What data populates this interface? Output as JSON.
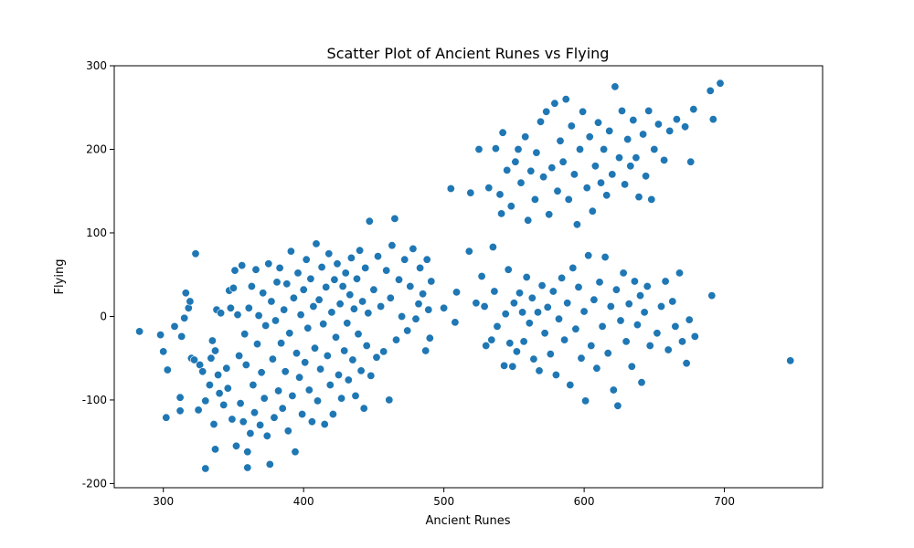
{
  "chart_data": {
    "type": "scatter",
    "title": "Scatter Plot of Ancient Runes vs Flying",
    "xlabel": "Ancient Runes",
    "ylabel": "Flying",
    "xlim": [
      265,
      770
    ],
    "ylim": [
      -205,
      300
    ],
    "x_ticks": [
      300,
      400,
      500,
      600,
      700
    ],
    "y_ticks": [
      -200,
      -100,
      0,
      100,
      200,
      300
    ],
    "grid": false,
    "marker_color": "#1f77b4",
    "series": [
      {
        "values": [
          [
            283,
            -18
          ],
          [
            298,
            -22
          ],
          [
            300,
            -42
          ],
          [
            302,
            -121
          ],
          [
            303,
            -64
          ],
          [
            308,
            -12
          ],
          [
            312,
            -97
          ],
          [
            312,
            -113
          ],
          [
            313,
            -24
          ],
          [
            315,
            -2
          ],
          [
            316,
            28
          ],
          [
            318,
            10
          ],
          [
            319,
            18
          ],
          [
            320,
            -50
          ],
          [
            322,
            -52
          ],
          [
            323,
            75
          ],
          [
            325,
            -112
          ],
          [
            326,
            -58
          ],
          [
            328,
            -66
          ],
          [
            330,
            -101
          ],
          [
            330,
            -182
          ],
          [
            333,
            -82
          ],
          [
            334,
            -50
          ],
          [
            335,
            -29
          ],
          [
            336,
            -129
          ],
          [
            337,
            -41
          ],
          [
            337,
            -159
          ],
          [
            338,
            8
          ],
          [
            339,
            -70
          ],
          [
            340,
            -92
          ],
          [
            341,
            4
          ],
          [
            343,
            -106
          ],
          [
            345,
            -62
          ],
          [
            346,
            -86
          ],
          [
            347,
            31
          ],
          [
            348,
            10
          ],
          [
            349,
            -123
          ],
          [
            350,
            34
          ],
          [
            351,
            55
          ],
          [
            352,
            -155
          ],
          [
            353,
            2
          ],
          [
            354,
            -47
          ],
          [
            355,
            -104
          ],
          [
            356,
            61
          ],
          [
            357,
            -126
          ],
          [
            358,
            -21
          ],
          [
            359,
            -58
          ],
          [
            360,
            -162
          ],
          [
            360,
            -181
          ],
          [
            361,
            10
          ],
          [
            362,
            -140
          ],
          [
            363,
            36
          ],
          [
            364,
            -82
          ],
          [
            365,
            -115
          ],
          [
            366,
            56
          ],
          [
            367,
            -33
          ],
          [
            368,
            1
          ],
          [
            369,
            -130
          ],
          [
            370,
            -67
          ],
          [
            371,
            28
          ],
          [
            372,
            -98
          ],
          [
            373,
            -11
          ],
          [
            374,
            -143
          ],
          [
            375,
            63
          ],
          [
            376,
            -177
          ],
          [
            377,
            18
          ],
          [
            378,
            -51
          ],
          [
            379,
            -121
          ],
          [
            380,
            -5
          ],
          [
            381,
            41
          ],
          [
            382,
            -89
          ],
          [
            383,
            58
          ],
          [
            384,
            -32
          ],
          [
            385,
            -110
          ],
          [
            386,
            8
          ],
          [
            387,
            -66
          ],
          [
            388,
            39
          ],
          [
            389,
            -137
          ],
          [
            390,
            -20
          ],
          [
            391,
            78
          ],
          [
            392,
            -95
          ],
          [
            393,
            22
          ],
          [
            394,
            -162
          ],
          [
            395,
            -44
          ],
          [
            396,
            52
          ],
          [
            397,
            -73
          ],
          [
            398,
            2
          ],
          [
            399,
            -117
          ],
          [
            400,
            32
          ],
          [
            401,
            -55
          ],
          [
            402,
            68
          ],
          [
            403,
            -14
          ],
          [
            404,
            -88
          ],
          [
            405,
            45
          ],
          [
            406,
            -126
          ],
          [
            407,
            12
          ],
          [
            408,
            -38
          ],
          [
            409,
            87
          ],
          [
            410,
            -101
          ],
          [
            411,
            20
          ],
          [
            412,
            -63
          ],
          [
            413,
            59
          ],
          [
            414,
            -9
          ],
          [
            415,
            -129
          ],
          [
            416,
            35
          ],
          [
            417,
            -47
          ],
          [
            418,
            75
          ],
          [
            419,
            -82
          ],
          [
            420,
            5
          ],
          [
            421,
            -117
          ],
          [
            422,
            44
          ],
          [
            423,
            -25
          ],
          [
            424,
            63
          ],
          [
            425,
            -70
          ],
          [
            426,
            15
          ],
          [
            427,
            -98
          ],
          [
            428,
            36
          ],
          [
            429,
            -41
          ],
          [
            430,
            52
          ],
          [
            431,
            -8
          ],
          [
            432,
            -76
          ],
          [
            433,
            26
          ],
          [
            434,
            70
          ],
          [
            435,
            -52
          ],
          [
            436,
            9
          ],
          [
            437,
            -95
          ],
          [
            438,
            45
          ],
          [
            439,
            -21
          ],
          [
            440,
            79
          ],
          [
            441,
            -65
          ],
          [
            442,
            18
          ],
          [
            443,
            -110
          ],
          [
            444,
            58
          ],
          [
            445,
            -35
          ],
          [
            446,
            4
          ],
          [
            447,
            114
          ],
          [
            448,
            -71
          ],
          [
            450,
            32
          ],
          [
            452,
            -49
          ],
          [
            453,
            72
          ],
          [
            455,
            12
          ],
          [
            457,
            -42
          ],
          [
            459,
            55
          ],
          [
            461,
            -100
          ],
          [
            462,
            22
          ],
          [
            463,
            85
          ],
          [
            465,
            117
          ],
          [
            466,
            -28
          ],
          [
            468,
            44
          ],
          [
            470,
            0
          ],
          [
            472,
            68
          ],
          [
            474,
            -17
          ],
          [
            476,
            36
          ],
          [
            478,
            81
          ],
          [
            480,
            -3
          ],
          [
            482,
            15
          ],
          [
            483,
            58
          ],
          [
            485,
            27
          ],
          [
            487,
            -41
          ],
          [
            488,
            68
          ],
          [
            489,
            8
          ],
          [
            490,
            -26
          ],
          [
            491,
            42
          ],
          [
            500,
            10
          ],
          [
            505,
            153
          ],
          [
            508,
            -7
          ],
          [
            509,
            29
          ],
          [
            518,
            78
          ],
          [
            519,
            148
          ],
          [
            523,
            16
          ],
          [
            525,
            200
          ],
          [
            527,
            48
          ],
          [
            529,
            12
          ],
          [
            530,
            -35
          ],
          [
            532,
            154
          ],
          [
            534,
            -28
          ],
          [
            535,
            83
          ],
          [
            536,
            30
          ],
          [
            537,
            201
          ],
          [
            538,
            -12
          ],
          [
            540,
            146
          ],
          [
            541,
            123
          ],
          [
            542,
            220
          ],
          [
            543,
            -59
          ],
          [
            544,
            3
          ],
          [
            545,
            175
          ],
          [
            546,
            56
          ],
          [
            547,
            -32
          ],
          [
            548,
            132
          ],
          [
            549,
            -60
          ],
          [
            550,
            16
          ],
          [
            551,
            185
          ],
          [
            552,
            -42
          ],
          [
            553,
            200
          ],
          [
            554,
            28
          ],
          [
            555,
            160
          ],
          [
            556,
            5
          ],
          [
            557,
            -30
          ],
          [
            558,
            215
          ],
          [
            559,
            47
          ],
          [
            560,
            115
          ],
          [
            561,
            -8
          ],
          [
            562,
            174
          ],
          [
            563,
            22
          ],
          [
            564,
            -51
          ],
          [
            565,
            140
          ],
          [
            566,
            196
          ],
          [
            567,
            5
          ],
          [
            568,
            -65
          ],
          [
            569,
            233
          ],
          [
            570,
            37
          ],
          [
            571,
            167
          ],
          [
            572,
            -20
          ],
          [
            573,
            245
          ],
          [
            574,
            11
          ],
          [
            575,
            122
          ],
          [
            576,
            -45
          ],
          [
            577,
            178
          ],
          [
            578,
            30
          ],
          [
            579,
            255
          ],
          [
            580,
            -70
          ],
          [
            581,
            150
          ],
          [
            582,
            -3
          ],
          [
            583,
            210
          ],
          [
            584,
            46
          ],
          [
            585,
            185
          ],
          [
            586,
            -28
          ],
          [
            587,
            260
          ],
          [
            588,
            16
          ],
          [
            589,
            140
          ],
          [
            590,
            -82
          ],
          [
            591,
            228
          ],
          [
            592,
            58
          ],
          [
            593,
            170
          ],
          [
            594,
            -15
          ],
          [
            595,
            110
          ],
          [
            596,
            35
          ],
          [
            597,
            200
          ],
          [
            598,
            -50
          ],
          [
            599,
            245
          ],
          [
            600,
            6
          ],
          [
            601,
            -101
          ],
          [
            602,
            154
          ],
          [
            603,
            73
          ],
          [
            604,
            215
          ],
          [
            605,
            -35
          ],
          [
            606,
            126
          ],
          [
            607,
            20
          ],
          [
            608,
            180
          ],
          [
            609,
            -62
          ],
          [
            610,
            232
          ],
          [
            611,
            41
          ],
          [
            612,
            160
          ],
          [
            613,
            -12
          ],
          [
            614,
            200
          ],
          [
            615,
            71
          ],
          [
            616,
            145
          ],
          [
            617,
            -44
          ],
          [
            618,
            222
          ],
          [
            619,
            12
          ],
          [
            620,
            170
          ],
          [
            621,
            -88
          ],
          [
            622,
            275
          ],
          [
            623,
            32
          ],
          [
            624,
            -107
          ],
          [
            625,
            190
          ],
          [
            626,
            -5
          ],
          [
            627,
            246
          ],
          [
            628,
            52
          ],
          [
            629,
            158
          ],
          [
            630,
            -30
          ],
          [
            631,
            212
          ],
          [
            632,
            15
          ],
          [
            633,
            180
          ],
          [
            634,
            -60
          ],
          [
            635,
            235
          ],
          [
            636,
            42
          ],
          [
            637,
            190
          ],
          [
            638,
            -10
          ],
          [
            639,
            143
          ],
          [
            640,
            25
          ],
          [
            641,
            -79
          ],
          [
            642,
            218
          ],
          [
            643,
            5
          ],
          [
            644,
            168
          ],
          [
            645,
            36
          ],
          [
            646,
            246
          ],
          [
            647,
            -35
          ],
          [
            648,
            140
          ],
          [
            650,
            200
          ],
          [
            652,
            -20
          ],
          [
            653,
            230
          ],
          [
            655,
            12
          ],
          [
            657,
            187
          ],
          [
            658,
            42
          ],
          [
            660,
            -40
          ],
          [
            661,
            222
          ],
          [
            663,
            18
          ],
          [
            665,
            -12
          ],
          [
            666,
            236
          ],
          [
            668,
            52
          ],
          [
            670,
            -30
          ],
          [
            672,
            227
          ],
          [
            673,
            -56
          ],
          [
            675,
            -4
          ],
          [
            676,
            185
          ],
          [
            678,
            248
          ],
          [
            679,
            -24
          ],
          [
            690,
            270
          ],
          [
            691,
            25
          ],
          [
            692,
            236
          ],
          [
            697,
            279
          ],
          [
            747,
            -53
          ]
        ]
      }
    ]
  }
}
